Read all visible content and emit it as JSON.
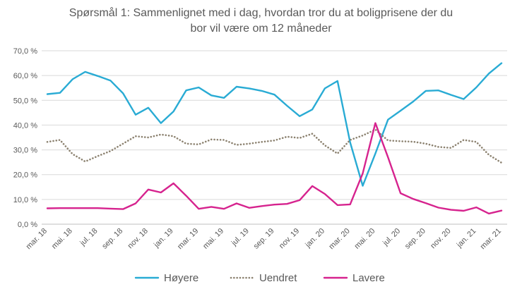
{
  "chart_data": {
    "type": "line",
    "title_line1": "Spørsmål 1: Sammenlignet  med i dag, hvordan tror du at boligprisene  der du",
    "title_line2": "bor vil være om 12 måneder",
    "xlabel": "",
    "ylabel": "",
    "ylim": [
      0,
      70
    ],
    "yticks": [
      "0,0 %",
      "10,0 %",
      "20,0 %",
      "30,0 %",
      "40,0 %",
      "50,0 %",
      "60,0 %",
      "70,0 %"
    ],
    "grid": true,
    "legend": "bottom",
    "x_tick_labels": [
      "mar. 18",
      "mai. 18",
      "jul. 18",
      "sep. 18",
      "nov. 18",
      "jan. 19",
      "mar. 19",
      "mai. 19",
      "jul. 19",
      "sep. 19",
      "nov. 19",
      "jan. 20",
      "mar. 20",
      "mai. 20",
      "jul. 20",
      "sep. 20",
      "nov. 20",
      "jan. 21",
      "mar. 21"
    ],
    "x_tick_index": [
      0,
      2,
      4,
      6,
      8,
      10,
      12,
      14,
      16,
      18,
      20,
      22,
      24,
      26,
      28,
      30,
      32,
      34,
      36
    ],
    "x": [
      "mar. 18",
      "apr. 18",
      "mai. 18",
      "jun. 18",
      "jul. 18",
      "aug. 18",
      "sep. 18",
      "okt. 18",
      "nov. 18",
      "des. 18",
      "jan. 19",
      "feb. 19",
      "mar. 19",
      "apr. 19",
      "mai. 19",
      "jun. 19",
      "jul. 19",
      "aug. 19",
      "sep. 19",
      "okt. 19",
      "nov. 19",
      "des. 19",
      "jan. 20",
      "feb. 20",
      "mar. 20",
      "apr. 20",
      "mai. 20",
      "jun. 20",
      "jul. 20",
      "aug. 20",
      "sep. 20",
      "okt. 20",
      "nov. 20",
      "des. 20",
      "jan. 21",
      "feb. 21",
      "mar. 21"
    ],
    "series": [
      {
        "name": "Høyere",
        "color": "#29ABD4",
        "dash": "solid",
        "values": [
          52.5,
          53.0,
          58.5,
          61.5,
          59.8,
          58.0,
          52.8,
          44.2,
          47.0,
          40.8,
          45.5,
          54.0,
          55.2,
          52.0,
          51.0,
          55.5,
          54.8,
          53.8,
          52.3,
          47.8,
          43.6,
          46.3,
          54.8,
          57.8,
          33.0,
          15.5,
          28.5,
          42.2,
          45.8,
          49.5,
          53.8,
          54.0,
          52.2,
          50.5,
          55.2,
          60.8,
          65.0
        ]
      },
      {
        "name": "Uendret",
        "color": "#8C8270",
        "dash": "dotted",
        "values": [
          33.2,
          34.0,
          28.3,
          25.3,
          27.5,
          29.5,
          32.5,
          35.5,
          35.0,
          36.2,
          35.5,
          32.5,
          32.2,
          34.2,
          34.0,
          32.0,
          32.5,
          33.2,
          33.8,
          35.3,
          34.8,
          36.5,
          31.8,
          28.5,
          34.0,
          35.8,
          38.2,
          33.8,
          33.5,
          33.3,
          32.5,
          31.2,
          30.8,
          34.0,
          33.2,
          28.0,
          24.8
        ]
      },
      {
        "name": "Lavere",
        "color": "#D6238E",
        "dash": "solid",
        "values": [
          6.4,
          6.5,
          6.5,
          6.5,
          6.5,
          6.3,
          6.1,
          8.4,
          14.0,
          12.8,
          16.5,
          11.5,
          6.2,
          7.0,
          6.2,
          8.4,
          6.6,
          7.3,
          7.9,
          8.2,
          9.7,
          15.4,
          12.2,
          7.7,
          8.0,
          20.5,
          40.8,
          27.0,
          12.5,
          10.2,
          8.5,
          6.7,
          5.8,
          5.4,
          6.8,
          4.3,
          5.5
        ]
      }
    ]
  }
}
